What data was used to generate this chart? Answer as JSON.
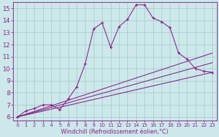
{
  "background_color": "#cce8ea",
  "grid_color": "#aacccc",
  "line_color": "#882288",
  "xlabel": "Windchill (Refroidissement éolien,°C)",
  "xlim": [
    -0.5,
    23.5
  ],
  "ylim": [
    5.7,
    15.5
  ],
  "yticks": [
    6,
    7,
    8,
    9,
    10,
    11,
    12,
    13,
    14,
    15
  ],
  "xticks": [
    0,
    1,
    2,
    3,
    4,
    5,
    6,
    7,
    8,
    9,
    10,
    11,
    12,
    13,
    14,
    15,
    16,
    17,
    18,
    19,
    20,
    21,
    22,
    23
  ],
  "series": [
    {
      "x": [
        0,
        1,
        2,
        3,
        4,
        5,
        6,
        7,
        8,
        9,
        10,
        11,
        12,
        13,
        14,
        15,
        16,
        17,
        18,
        19,
        20,
        21,
        22,
        23
      ],
      "y": [
        6.0,
        6.5,
        6.7,
        7.0,
        7.0,
        6.6,
        7.5,
        8.5,
        10.4,
        13.3,
        13.8,
        11.8,
        13.5,
        14.1,
        15.3,
        15.3,
        14.2,
        13.9,
        13.4,
        11.3,
        10.8,
        10.0,
        9.8,
        9.7
      ],
      "marker": "+",
      "linestyle": "-",
      "linewidth": 0.8
    },
    {
      "x": [
        0,
        23
      ],
      "y": [
        6.0,
        11.3
      ],
      "marker": null,
      "linestyle": "-",
      "linewidth": 0.8
    },
    {
      "x": [
        0,
        23
      ],
      "y": [
        6.0,
        10.5
      ],
      "marker": null,
      "linestyle": "-",
      "linewidth": 0.8
    },
    {
      "x": [
        0,
        23
      ],
      "y": [
        6.0,
        9.7
      ],
      "marker": null,
      "linestyle": "-",
      "linewidth": 0.8
    }
  ],
  "xlabel_fontsize": 6.0,
  "tick_fontsize_y": 6.5,
  "tick_fontsize_x": 5.2
}
